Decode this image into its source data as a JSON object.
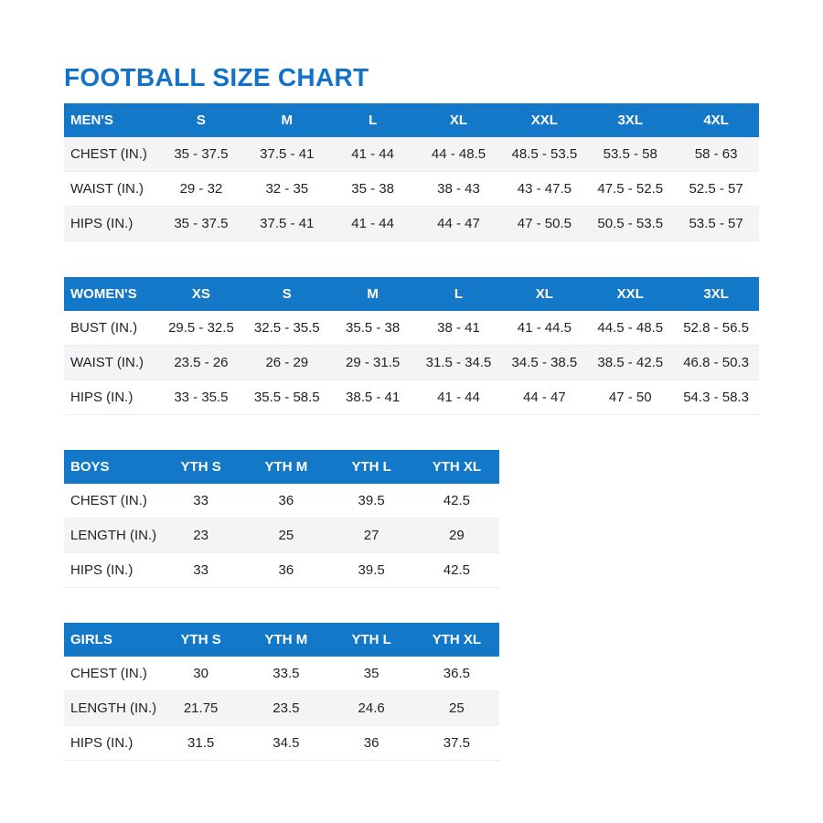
{
  "page": {
    "title": "FOOTBALL SIZE CHART"
  },
  "colors": {
    "title_blue": "#1271C8",
    "header_blue": "#1478C8",
    "header_text": "#ffffff",
    "row_text": "#212326",
    "stripe_gray": "#f4f4f6"
  },
  "tables": [
    {
      "id": "mens",
      "header": [
        "MEN'S",
        "S",
        "M",
        "L",
        "XL",
        "XXL",
        "3XL",
        "4XL"
      ],
      "rows": [
        {
          "label": "CHEST (IN.)",
          "striped": true,
          "values": [
            "35 - 37.5",
            "37.5 - 41",
            "41 - 44",
            "44 - 48.5",
            "48.5 - 53.5",
            "53.5 - 58",
            "58 - 63"
          ]
        },
        {
          "label": "WAIST (IN.)",
          "striped": false,
          "values": [
            "29 - 32",
            "32 - 35",
            "35 - 38",
            "38 - 43",
            "43 - 47.5",
            "47.5 - 52.5",
            "52.5 - 57"
          ]
        },
        {
          "label": "HIPS (IN.)",
          "striped": true,
          "values": [
            "35 - 37.5",
            "37.5 - 41",
            "41 - 44",
            "44 - 47",
            "47 - 50.5",
            "50.5 - 53.5",
            "53.5 - 57"
          ]
        }
      ]
    },
    {
      "id": "womens",
      "header": [
        "WOMEN'S",
        "XS",
        "S",
        "M",
        "L",
        "XL",
        "XXL",
        "3XL"
      ],
      "rows": [
        {
          "label": "BUST (IN.)",
          "striped": false,
          "values": [
            "29.5 - 32.5",
            "32.5 - 35.5",
            "35.5 - 38",
            "38 - 41",
            "41 - 44.5",
            "44.5 - 48.5",
            "52.8 - 56.5"
          ]
        },
        {
          "label": "WAIST (IN.)",
          "striped": true,
          "values": [
            "23.5 - 26",
            "26 - 29",
            "29 - 31.5",
            "31.5 - 34.5",
            "34.5 - 38.5",
            "38.5 - 42.5",
            "46.8 - 50.3"
          ]
        },
        {
          "label": "HIPS (IN.)",
          "striped": false,
          "values": [
            "33 - 35.5",
            "35.5 - 58.5",
            "38.5 - 41",
            "41 - 44",
            "44 - 47",
            "47 - 50",
            "54.3 - 58.3"
          ]
        }
      ]
    },
    {
      "id": "boys",
      "header": [
        "BOYS",
        "YTH S",
        "YTH M",
        "YTH L",
        "YTH XL"
      ],
      "rows": [
        {
          "label": "CHEST (IN.)",
          "striped": false,
          "values": [
            "33",
            "36",
            "39.5",
            "42.5"
          ]
        },
        {
          "label": "LENGTH (IN.)",
          "striped": true,
          "values": [
            "23",
            "25",
            "27",
            "29"
          ]
        },
        {
          "label": "HIPS (IN.)",
          "striped": false,
          "values": [
            "33",
            "36",
            "39.5",
            "42.5"
          ]
        }
      ]
    },
    {
      "id": "girls",
      "header": [
        "GIRLS",
        "YTH S",
        "YTH M",
        "YTH L",
        "YTH XL"
      ],
      "rows": [
        {
          "label": "CHEST (IN.)",
          "striped": false,
          "values": [
            "30",
            "33.5",
            "35",
            "36.5"
          ]
        },
        {
          "label": "LENGTH (IN.)",
          "striped": true,
          "values": [
            "21.75",
            "23.5",
            "24.6",
            "25"
          ]
        },
        {
          "label": "HIPS (IN.)",
          "striped": false,
          "values": [
            "31.5",
            "34.5",
            "36",
            "37.5"
          ]
        }
      ]
    }
  ]
}
